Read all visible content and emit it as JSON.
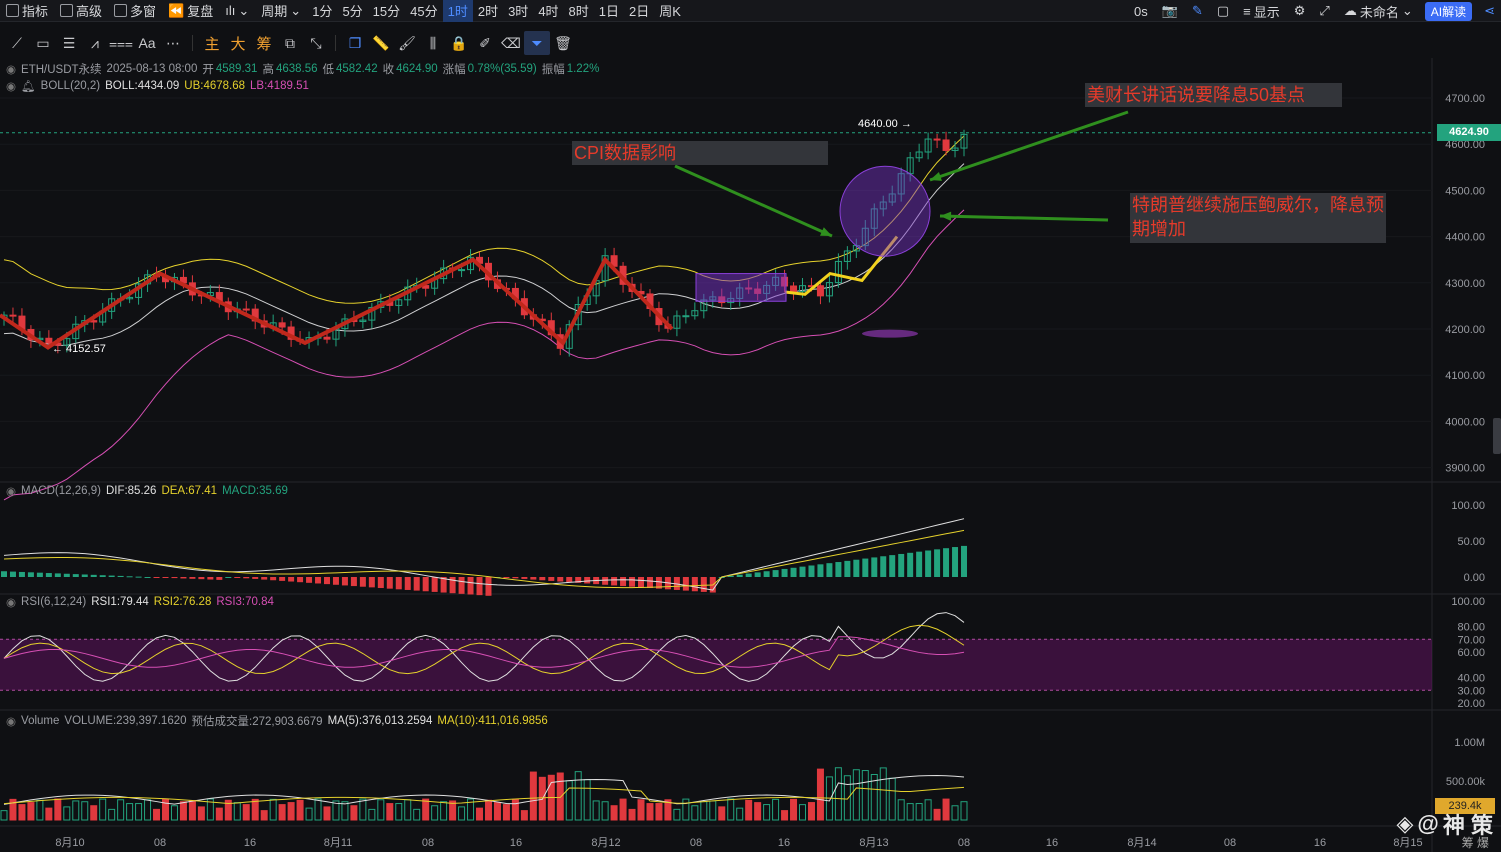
{
  "topbar": {
    "indicators": "指标",
    "advanced": "高级",
    "multi_window": "多窗",
    "replay": "复盘",
    "chart_type": "",
    "period": "周期",
    "intervals": [
      "1分",
      "5分",
      "15分",
      "45分",
      "1时",
      "2时",
      "3时",
      "4时",
      "8时",
      "1日",
      "2日",
      "周K"
    ],
    "active_interval": "1时",
    "countdown": "0s",
    "display": "显示",
    "unnamed": "未命名",
    "ai": "AI解读"
  },
  "toolbar": {
    "main": "主",
    "big": "大",
    "chip": "筹",
    "text_tool": "Aa"
  },
  "legend": {
    "symbol": "ETH/USDT永续",
    "datetime": "2025-08-13 08:00",
    "open_label": "开",
    "open": "4589.31",
    "high_label": "高",
    "high": "4638.56",
    "low_label": "低",
    "low": "4582.42",
    "close_label": "收",
    "close": "4624.90",
    "change_label": "涨幅",
    "change": "0.78%(35.59)",
    "amp_label": "振幅",
    "amp": "1.22%",
    "boll_name": "BOLL(20,2)",
    "boll_mid": "BOLL:4434.09",
    "boll_ub": "UB:4678.68",
    "boll_lb": "LB:4189.51",
    "macd_name": "MACD(12,26,9)",
    "macd_dif": "DIF:85.26",
    "macd_dea": "DEA:67.41",
    "macd_val": "MACD:35.69",
    "rsi_name": "RSI(6,12,24)",
    "rsi1": "RSI1:79.44",
    "rsi2": "RSI2:76.28",
    "rsi3": "RSI3:70.84",
    "vol_name": "Volume",
    "vol_val": "VOLUME:239,397.1620",
    "vol_est": "预估成交量:272,903.6679",
    "ma5": "MA(5):376,013.2594",
    "ma10": "MA(10):411,016.9856"
  },
  "price_axis": [
    "4700.00",
    "4600.00",
    "4500.00",
    "4400.00",
    "4300.00",
    "4200.00",
    "4100.00",
    "4000.00",
    "3900.00"
  ],
  "macd_axis": [
    "100.00",
    "50.00",
    "0.00"
  ],
  "rsi_axis": [
    "100.00",
    "80.00",
    "70.00",
    "60.00",
    "40.00",
    "30.00",
    "20.00"
  ],
  "vol_axis": [
    "1.00M",
    "500.00k"
  ],
  "time_axis": [
    "8月10",
    "08",
    "16",
    "8月11",
    "08",
    "16",
    "8月12",
    "08",
    "16",
    "8月13",
    "08",
    "16",
    "8月14",
    "08",
    "16",
    "8月15"
  ],
  "markers": {
    "high": "4640.00 →",
    "low": "← 4152.57"
  },
  "current_price": "4624.90",
  "current_volume": "239.4k",
  "annotations": {
    "cpi": "CPI数据影响",
    "treasury": "美财长讲话说要降息50基点",
    "trump": "特朗普继续施压鲍威尔，降息预期增加"
  },
  "watermark": {
    "name": "神 策",
    "sub": "筹 爆"
  },
  "colors": {
    "up": "#23a37e",
    "down": "#e0393e",
    "ub": "#e5d12c",
    "mid": "#cfd0d2",
    "lb": "#d64fb4",
    "annot_line": "#e03020",
    "arrow": "#2f8f1e"
  }
}
